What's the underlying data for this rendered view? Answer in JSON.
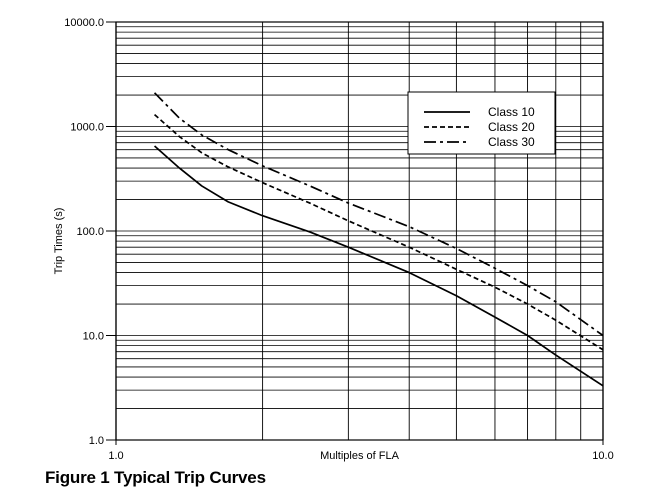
{
  "caption": "Figure 1 Typical Trip Curves",
  "chart_data": {
    "type": "line",
    "title": "",
    "xlabel": "Multiples of FLA",
    "ylabel": "Trip Times (s)",
    "xscale": "log",
    "yscale": "log",
    "xlim": [
      1.0,
      10.0
    ],
    "ylim": [
      1.0,
      10000.0
    ],
    "x_tick_labels": [
      "1.0",
      "10.0"
    ],
    "y_tick_labels": [
      "1.0",
      "10.0",
      "100.0",
      "1000.0",
      "10000.0"
    ],
    "grid": true,
    "legend_position": "top-right",
    "series": [
      {
        "name": "Class 10",
        "style": "solid",
        "x": [
          1.2,
          1.35,
          1.5,
          1.7,
          2.0,
          2.5,
          3.0,
          4.0,
          5.0,
          6.0,
          7.0,
          8.0,
          10.0
        ],
        "y": [
          650,
          400,
          270,
          190,
          140,
          98,
          70,
          40,
          24,
          15,
          10,
          6.5,
          3.3
        ]
      },
      {
        "name": "Class 20",
        "style": "dashed",
        "x": [
          1.2,
          1.35,
          1.5,
          1.7,
          2.0,
          2.5,
          3.0,
          4.0,
          5.0,
          6.0,
          7.0,
          8.0,
          10.0
        ],
        "y": [
          1300,
          800,
          560,
          410,
          290,
          185,
          125,
          70,
          43,
          29,
          20,
          14,
          7.3
        ]
      },
      {
        "name": "Class 30",
        "style": "dashdot",
        "x": [
          1.2,
          1.35,
          1.5,
          1.7,
          2.0,
          2.5,
          3.0,
          4.0,
          5.0,
          6.0,
          7.0,
          8.0,
          10.0
        ],
        "y": [
          2100,
          1200,
          830,
          600,
          420,
          270,
          185,
          110,
          68,
          44,
          30,
          21,
          10
        ]
      }
    ]
  }
}
